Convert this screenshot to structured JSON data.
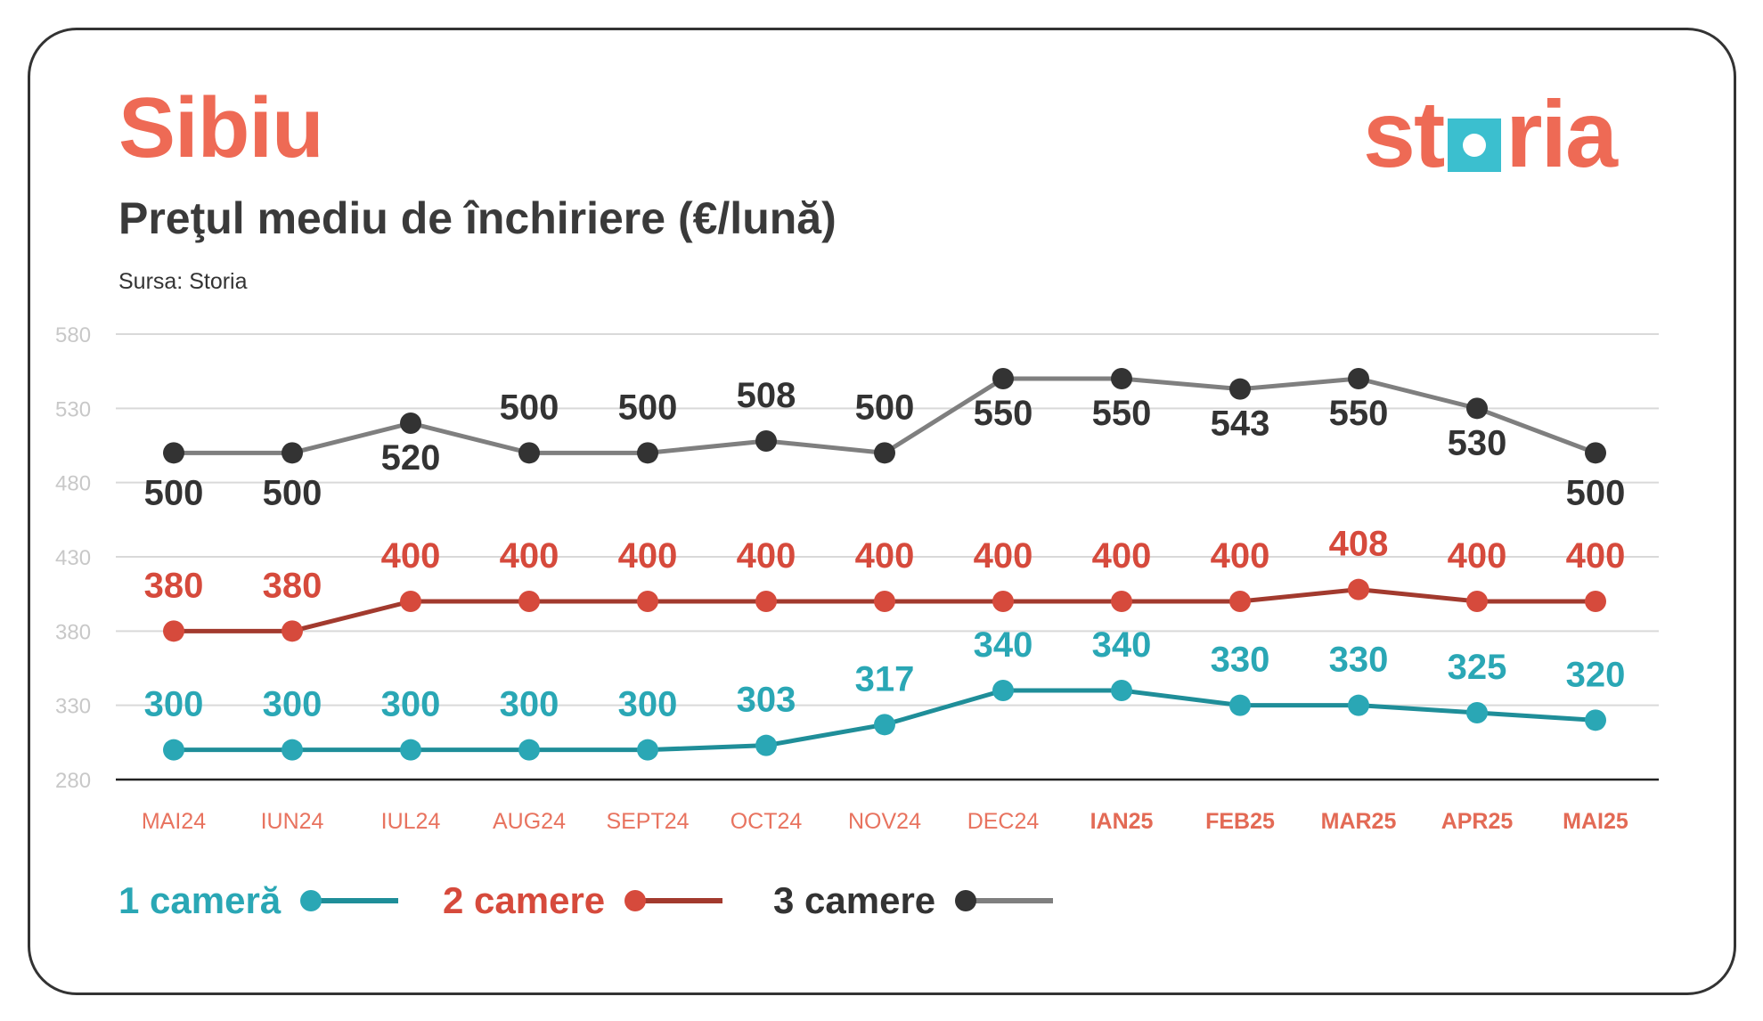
{
  "header": {
    "city": "Sibiu",
    "subtitle": "Preţul mediu de închiriere (€/lună)",
    "source": "Sursa: Storia"
  },
  "logo": {
    "text_before": "st",
    "text_after": "ria",
    "color": "#ee6a55",
    "box_color": "#3bbfcf"
  },
  "colors": {
    "title": "#ee6a55",
    "axis_label": "#e8735f",
    "axis_label_bold": "#e36a55"
  },
  "chart_data": {
    "type": "line",
    "x": [
      "MAI24",
      "IUN24",
      "IUL24",
      "AUG24",
      "SEPT24",
      "OCT24",
      "NOV24",
      "DEC24",
      "IAN25",
      "FEB25",
      "MAR25",
      "APR25",
      "MAI25"
    ],
    "x_bold": [
      false,
      false,
      false,
      false,
      false,
      false,
      false,
      false,
      true,
      true,
      true,
      true,
      true
    ],
    "yticks": [
      580,
      530,
      480,
      430,
      380,
      330,
      280
    ],
    "ylim": [
      280,
      580
    ],
    "grid": true,
    "series": [
      {
        "name": "1 cameră",
        "values": [
          300,
          300,
          300,
          300,
          300,
          303,
          317,
          340,
          340,
          330,
          330,
          325,
          320
        ],
        "line_color": "#1f8e99",
        "dot_color": "#2aa7b5",
        "label_color": "#2aa7b5"
      },
      {
        "name": "2 camere",
        "values": [
          380,
          380,
          400,
          400,
          400,
          400,
          400,
          400,
          400,
          400,
          408,
          400,
          400
        ],
        "line_color": "#a23a2e",
        "dot_color": "#d64a3c",
        "label_color": "#d64a3c"
      },
      {
        "name": "3 camere",
        "values": [
          500,
          500,
          520,
          500,
          500,
          508,
          500,
          550,
          550,
          543,
          550,
          530,
          500
        ],
        "line_color": "#7f7f7f",
        "dot_color": "#333333",
        "label_color": "#333333"
      }
    ]
  }
}
